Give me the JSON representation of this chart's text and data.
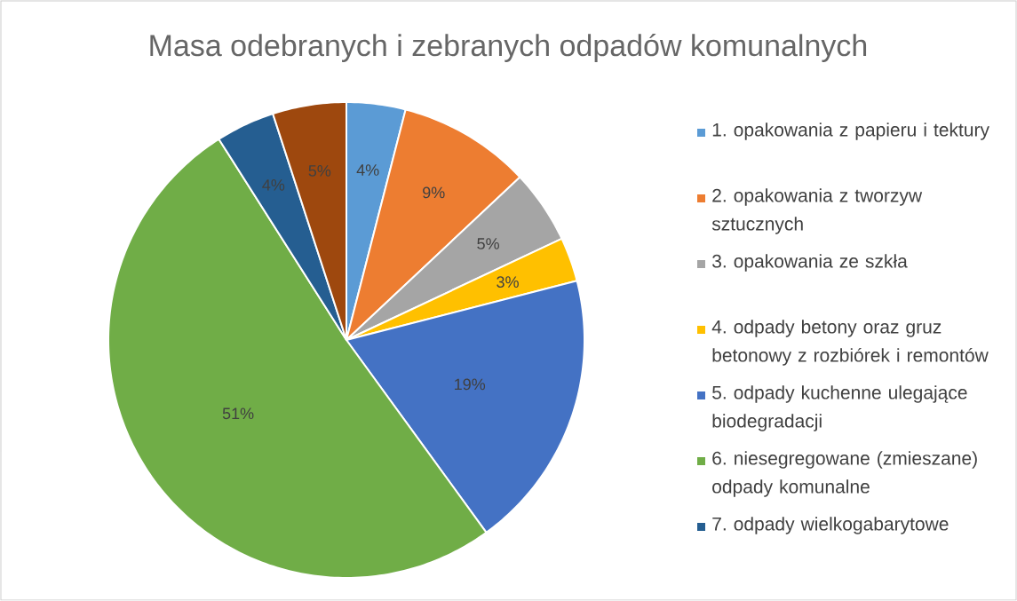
{
  "chart_data": {
    "type": "pie",
    "title": "Masa odebranych i zebranych odpadów komunalnych",
    "categories": [
      "1. opakowania z papieru i tektury",
      "2. opakowania z tworzyw sztucznych",
      "3. opakowania ze szkła",
      "4. odpady betony oraz gruz betonowy z rozbiórek i remontów",
      "5. odpady kuchenne ulegające biodegradacji",
      "6. niesegregowane (zmieszane) odpady komunalne",
      "7. odpady wielkogabarytowe",
      null
    ],
    "values": [
      4,
      9,
      5,
      3,
      19,
      51,
      4,
      5
    ],
    "value_labels": [
      "4%",
      "9%",
      "5%",
      "3%",
      "19%",
      "51%",
      "4%",
      "5%"
    ],
    "colors": [
      "#5b9bd5",
      "#ed7d31",
      "#a5a5a5",
      "#ffc000",
      "#4472c4",
      "#70ad47",
      "#255e91",
      "#9e480e"
    ],
    "legend": "right"
  }
}
